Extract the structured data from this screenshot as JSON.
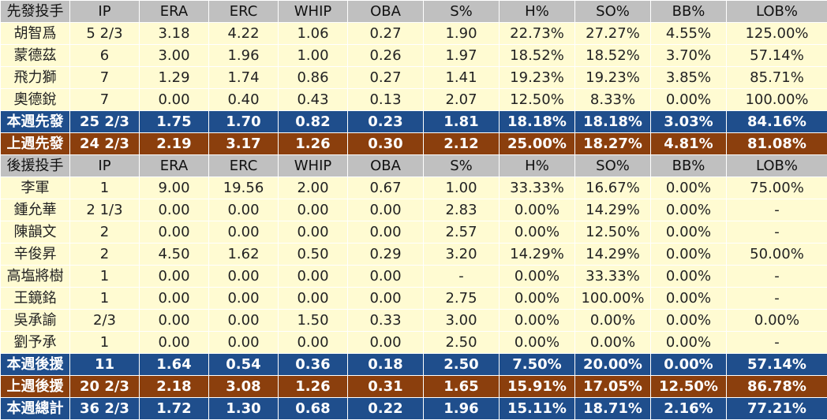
{
  "columns": [
    "IP",
    "ERA",
    "ERC",
    "WHIP",
    "OBA",
    "S%",
    "H%",
    "SO%",
    "BB%",
    "LOB%"
  ],
  "starters": {
    "header": "先發投手",
    "rows": [
      [
        "胡智爲",
        "5 2/3",
        "3.18",
        "4.22",
        "1.06",
        "0.27",
        "1.90",
        "22.73%",
        "27.27%",
        "4.55%",
        "125.00%"
      ],
      [
        "蒙德茲",
        "6",
        "3.00",
        "1.96",
        "1.00",
        "0.26",
        "1.97",
        "18.52%",
        "18.52%",
        "3.70%",
        "57.14%"
      ],
      [
        "飛力獅",
        "7",
        "1.29",
        "1.74",
        "0.86",
        "0.27",
        "1.41",
        "19.23%",
        "19.23%",
        "3.85%",
        "85.71%"
      ],
      [
        "奧德銳",
        "7",
        "0.00",
        "0.40",
        "0.43",
        "0.13",
        "2.07",
        "12.50%",
        "8.33%",
        "0.00%",
        "100.00%"
      ]
    ],
    "this_week": [
      "本週先發",
      "25 2/3",
      "1.75",
      "1.70",
      "0.82",
      "0.23",
      "1.81",
      "18.18%",
      "18.18%",
      "3.03%",
      "84.16%"
    ],
    "last_week": [
      "上週先發",
      "24 2/3",
      "2.19",
      "3.17",
      "1.26",
      "0.30",
      "2.12",
      "25.00%",
      "18.27%",
      "4.81%",
      "81.08%"
    ]
  },
  "relievers": {
    "header": "後援投手",
    "rows": [
      [
        "李軍",
        "1",
        "9.00",
        "19.56",
        "2.00",
        "0.67",
        "1.00",
        "33.33%",
        "16.67%",
        "0.00%",
        "75.00%"
      ],
      [
        "鍾允華",
        "2 1/3",
        "0.00",
        "0.00",
        "0.00",
        "0.00",
        "2.83",
        "0.00%",
        "14.29%",
        "0.00%",
        "-"
      ],
      [
        "陳韻文",
        "2",
        "0.00",
        "0.00",
        "0.00",
        "0.00",
        "2.57",
        "0.00%",
        "12.50%",
        "0.00%",
        "-"
      ],
      [
        "辛俊昇",
        "2",
        "4.50",
        "1.62",
        "0.50",
        "0.29",
        "3.20",
        "14.29%",
        "14.29%",
        "0.00%",
        "50.00%"
      ],
      [
        "高塩將樹",
        "1",
        "0.00",
        "0.00",
        "0.00",
        "0.00",
        "-",
        "0.00%",
        "33.33%",
        "0.00%",
        "-"
      ],
      [
        "王鏡銘",
        "1",
        "0.00",
        "0.00",
        "0.00",
        "0.00",
        "2.75",
        "0.00%",
        "100.00%",
        "0.00%",
        "-"
      ],
      [
        "吳承諭",
        "2/3",
        "0.00",
        "0.00",
        "1.50",
        "0.33",
        "3.00",
        "0.00%",
        "0.00%",
        "0.00%",
        "0.00%"
      ],
      [
        "劉予承",
        "1",
        "0.00",
        "0.00",
        "0.00",
        "0.00",
        "2.50",
        "0.00%",
        "0.00%",
        "0.00%",
        "-"
      ]
    ],
    "this_week": [
      "本週後援",
      "11",
      "1.64",
      "0.54",
      "0.36",
      "0.18",
      "2.50",
      "7.50%",
      "20.00%",
      "0.00%",
      "57.14%"
    ],
    "last_week": [
      "上週後援",
      "20 2/3",
      "2.18",
      "3.08",
      "1.26",
      "0.31",
      "1.65",
      "15.91%",
      "17.05%",
      "12.50%",
      "86.78%"
    ]
  },
  "total": [
    "本週總計",
    "36 2/3",
    "1.72",
    "1.30",
    "0.68",
    "0.22",
    "1.96",
    "15.11%",
    "18.71%",
    "2.16%",
    "77.21%"
  ],
  "colors": {
    "header_bg": "#c0c0c0",
    "data_bg": "#fffbd2",
    "this_week_bg": "#1f4e8c",
    "last_week_bg": "#8b3f0d"
  }
}
